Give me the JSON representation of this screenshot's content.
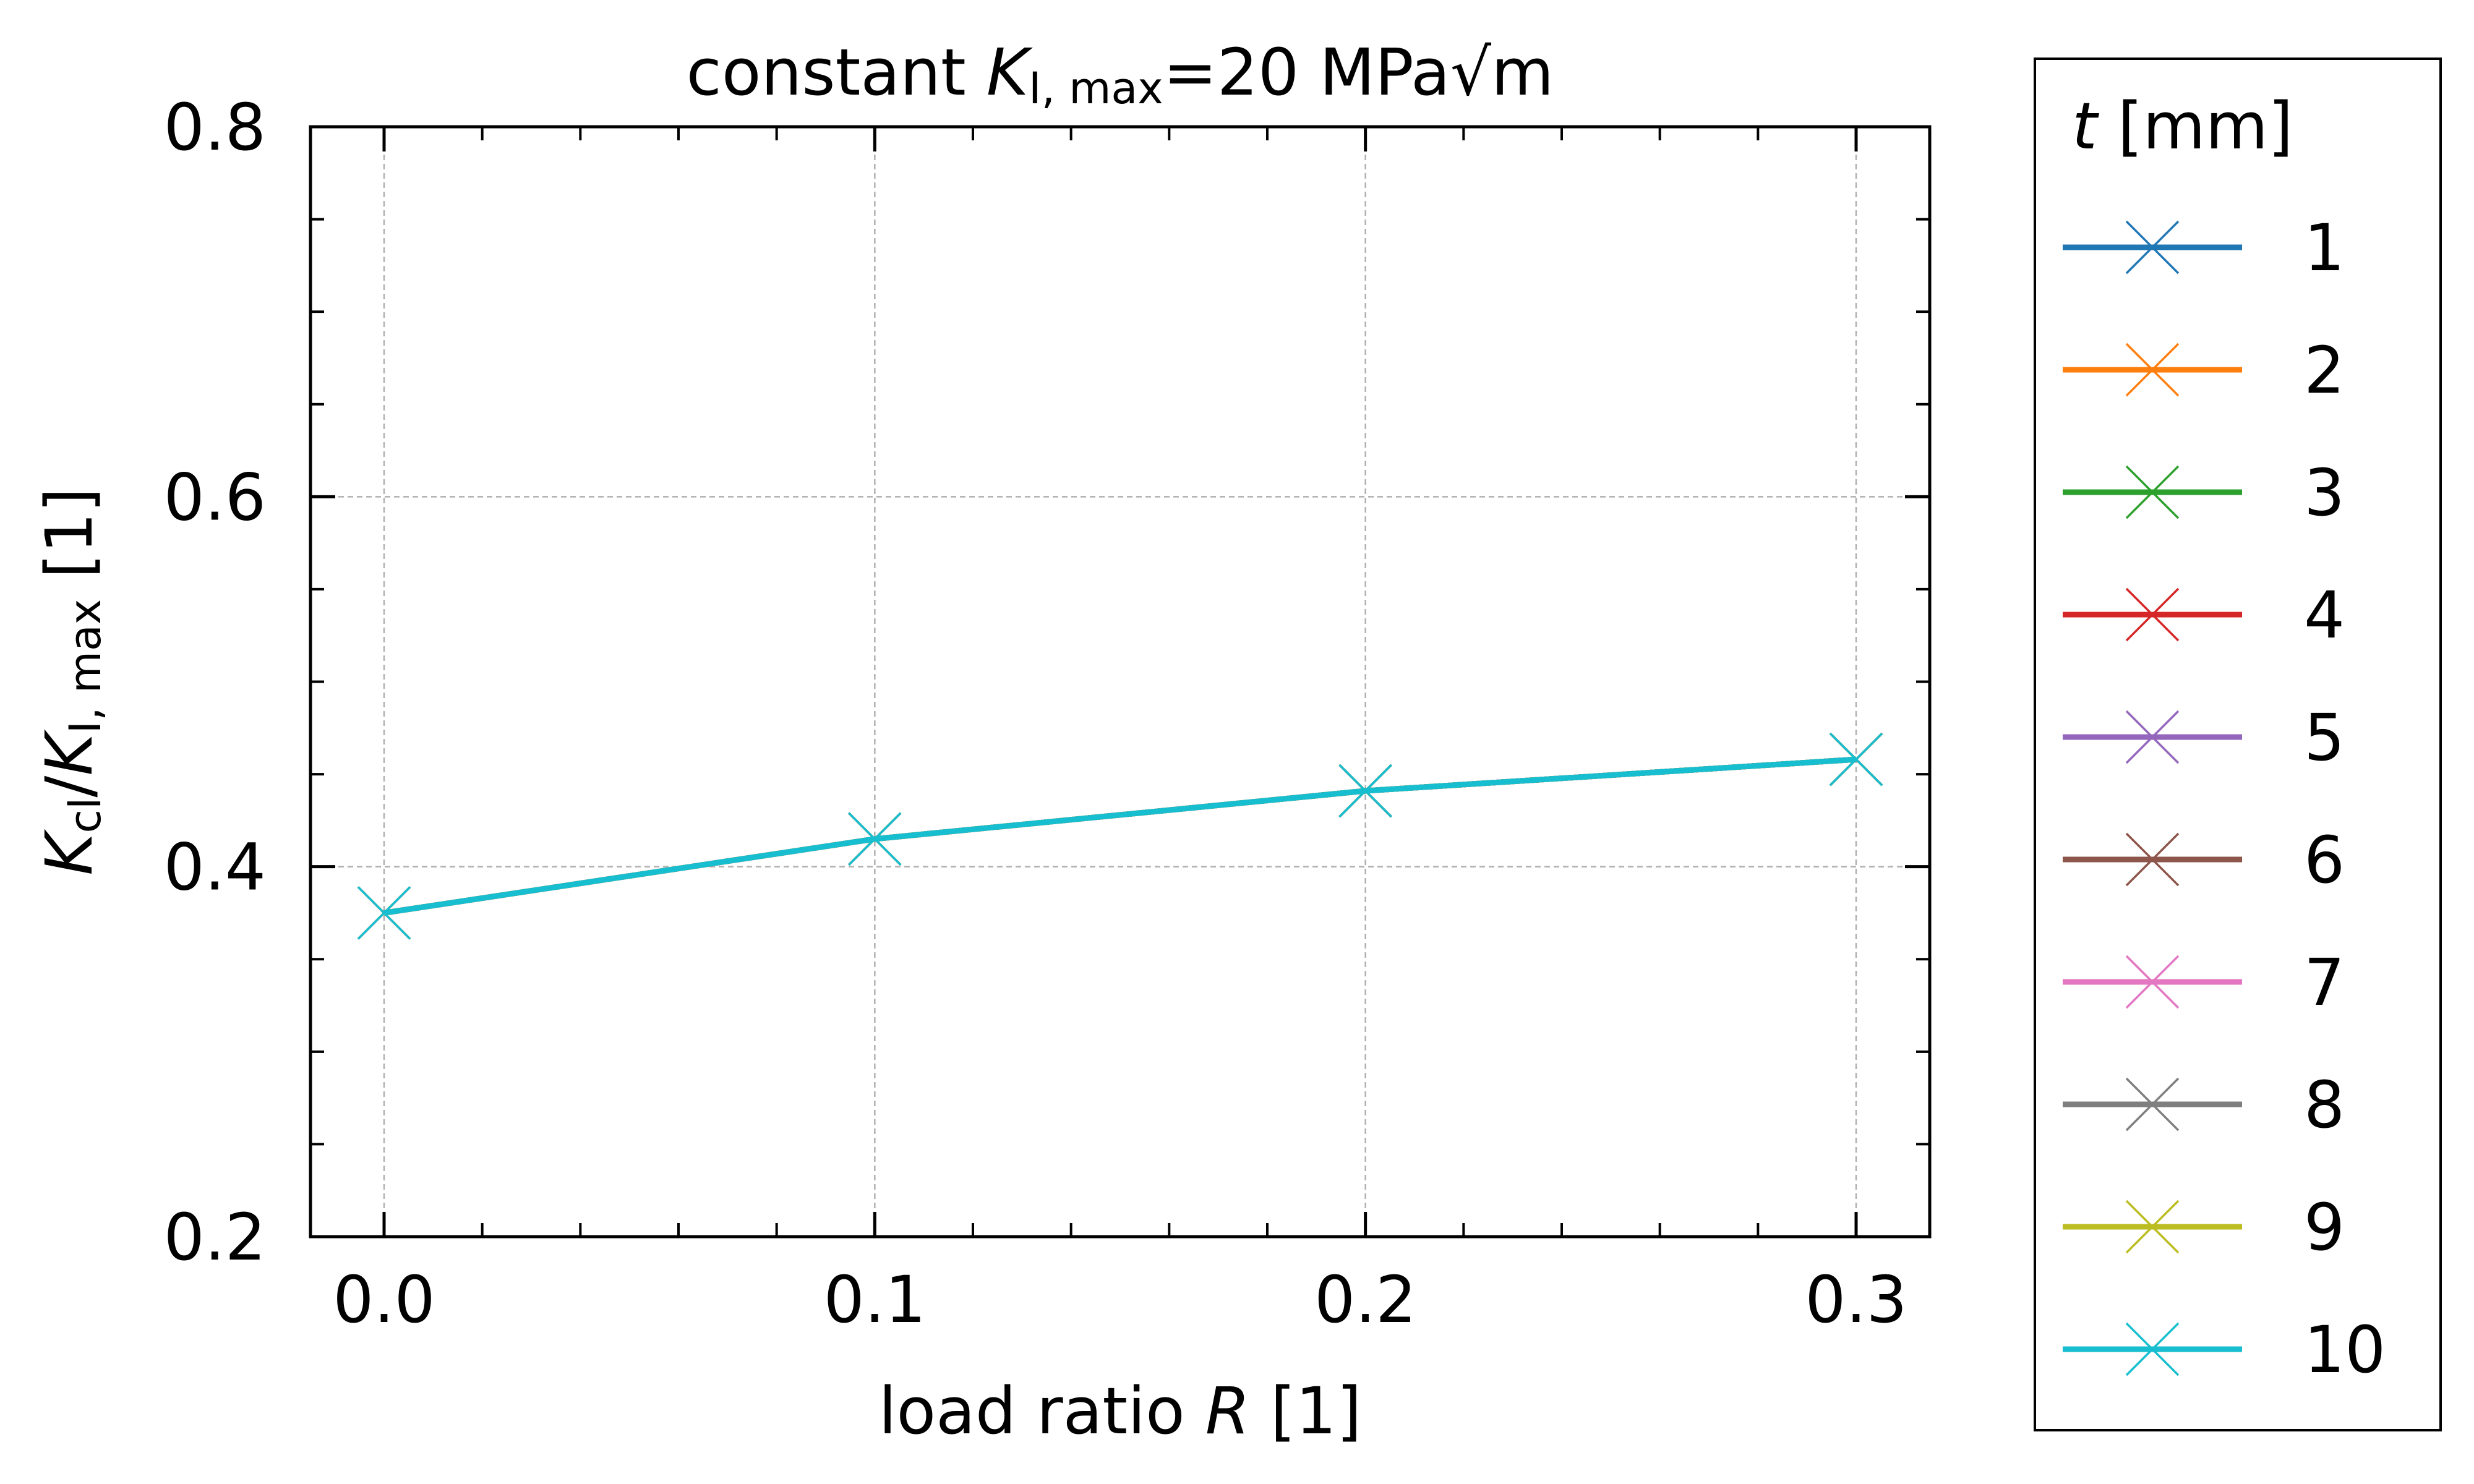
{
  "chart_data": {
    "type": "line",
    "title": {
      "pre": "constant ",
      "K": "K",
      "sub": "I, max",
      "post": "=20 MPa√m"
    },
    "xlabel": {
      "pre": "load ratio ",
      "var": "R",
      "post": " [1]"
    },
    "ylabel": {
      "K1": "K",
      "sub1": "cl",
      "slash": "/",
      "K2": "K",
      "sub2": "I, max",
      "post": " [1]"
    },
    "xlim": [
      -0.015,
      0.315
    ],
    "ylim": [
      0.2,
      0.8
    ],
    "xticks": [
      0.0,
      0.1,
      0.2,
      0.3
    ],
    "xtick_labels": [
      "0.0",
      "0.1",
      "0.2",
      "0.3"
    ],
    "yticks": [
      0.2,
      0.4,
      0.6,
      0.8
    ],
    "ytick_labels": [
      "0.2",
      "0.4",
      "0.6",
      "0.8"
    ],
    "grid": true,
    "legend": {
      "title_var": "t",
      "title_unit": " [mm]",
      "placement": "outside-right"
    },
    "x": [
      0.0,
      0.1,
      0.2,
      0.3
    ],
    "series": [
      {
        "name": "1",
        "color": "#1f77b4",
        "values": [
          0.375,
          0.415,
          0.441,
          0.458
        ]
      },
      {
        "name": "2",
        "color": "#ff7f0e",
        "values": [
          0.375,
          0.415,
          0.441,
          0.458
        ]
      },
      {
        "name": "3",
        "color": "#2ca02c",
        "values": [
          0.375,
          0.415,
          0.441,
          0.458
        ]
      },
      {
        "name": "4",
        "color": "#d62728",
        "values": [
          0.375,
          0.415,
          0.441,
          0.458
        ]
      },
      {
        "name": "5",
        "color": "#9467bd",
        "values": [
          0.375,
          0.415,
          0.441,
          0.458
        ]
      },
      {
        "name": "6",
        "color": "#8c564b",
        "values": [
          0.375,
          0.415,
          0.441,
          0.458
        ]
      },
      {
        "name": "7",
        "color": "#e377c2",
        "values": [
          0.375,
          0.415,
          0.441,
          0.458
        ]
      },
      {
        "name": "8",
        "color": "#7f7f7f",
        "values": [
          0.375,
          0.415,
          0.441,
          0.458
        ]
      },
      {
        "name": "9",
        "color": "#bcbd22",
        "values": [
          0.375,
          0.415,
          0.441,
          0.458
        ]
      },
      {
        "name": "10",
        "color": "#17becf",
        "values": [
          0.375,
          0.415,
          0.441,
          0.458
        ]
      }
    ],
    "marker": "x"
  }
}
